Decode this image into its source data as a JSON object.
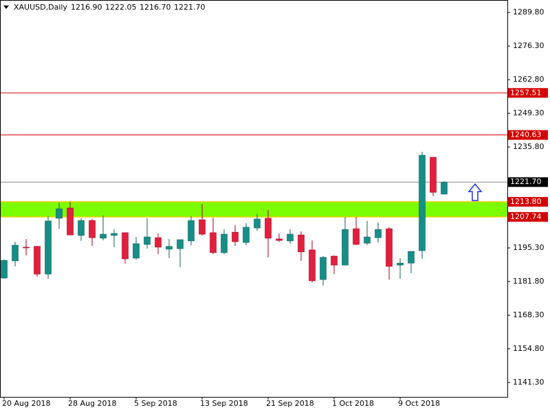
{
  "chart_data": {
    "type": "candlestick",
    "title": "XAUUSD,Daily",
    "header_values": [
      "1216.90",
      "1222.05",
      "1216.70",
      "1221.70"
    ],
    "categories": [
      "20 Aug 2018",
      null,
      null,
      null,
      null,
      null,
      "28 Aug 2018",
      null,
      null,
      null,
      null,
      null,
      "5 Sep 2018",
      null,
      null,
      null,
      null,
      null,
      "13 Sep 2018",
      null,
      null,
      null,
      null,
      null,
      "21 Sep 2018",
      null,
      null,
      null,
      null,
      null,
      "1 Oct 2018",
      null,
      null,
      null,
      null,
      null,
      "9 Oct 2018",
      null,
      null,
      null,
      null
    ],
    "open": [
      1183.2,
      1190.1,
      1195.6,
      1195.9,
      1184.8,
      1207.2,
      1211.3,
      1200.3,
      1206.3,
      1199.2,
      1200.3,
      1201.4,
      1191.2,
      1196.7,
      1199.4,
      1194.8,
      1195.0,
      1198.1,
      1206.6,
      1201.4,
      1193.4,
      1201.6,
      1197.5,
      1203.3,
      1207.2,
      1198.9,
      1198.1,
      1200.5,
      1194.5,
      1182.6,
      1192.0,
      1188.4,
      1203.0,
      1197.2,
      1199.4,
      1203.0,
      1188.4,
      1189.2,
      1194.2,
      1231.7,
      1216.9
    ],
    "high": [
      1190.6,
      1197.8,
      1198.9,
      1196.1,
      1208.0,
      1213.5,
      1213.8,
      1207.2,
      1206.9,
      1208.3,
      1202.7,
      1201.4,
      1199.7,
      1207.2,
      1201.1,
      1198.9,
      1198.6,
      1208.0,
      1212.9,
      1207.4,
      1202.7,
      1204.4,
      1205.2,
      1208.8,
      1210.5,
      1201.1,
      1202.7,
      1201.9,
      1198.3,
      1192.0,
      1192.3,
      1207.7,
      1207.7,
      1206.1,
      1205.5,
      1203.6,
      1191.2,
      1193.9,
      1233.9,
      1231.7,
      1222.05
    ],
    "low": [
      1182.9,
      1187.9,
      1192.3,
      1183.7,
      1182.9,
      1203.0,
      1200.5,
      1198.1,
      1196.1,
      1198.3,
      1195.6,
      1189.0,
      1190.6,
      1195.0,
      1192.8,
      1191.2,
      1187.6,
      1196.4,
      1200.3,
      1192.8,
      1192.8,
      1196.1,
      1196.4,
      1202.2,
      1191.5,
      1197.8,
      1197.0,
      1190.1,
      1181.5,
      1180.2,
      1184.8,
      1188.4,
      1196.4,
      1196.4,
      1197.5,
      1182.6,
      1182.9,
      1185.1,
      1190.9,
      1216.0,
      1216.7
    ],
    "close": [
      1190.3,
      1196.4,
      1195.3,
      1184.8,
      1206.1,
      1211.0,
      1200.5,
      1206.3,
      1199.4,
      1200.8,
      1201.1,
      1190.9,
      1197.0,
      1199.7,
      1195.6,
      1195.9,
      1198.6,
      1206.3,
      1200.8,
      1193.4,
      1200.8,
      1197.8,
      1203.6,
      1206.9,
      1199.2,
      1198.3,
      1200.8,
      1193.7,
      1182.1,
      1191.5,
      1188.4,
      1202.7,
      1196.7,
      1199.7,
      1202.7,
      1187.9,
      1189.2,
      1193.9,
      1232.5,
      1217.6,
      1221.7
    ],
    "up_color": "#168f88",
    "down_color": "#e2203e",
    "ylim": [
      1135.5,
      1294.8
    ],
    "yticks": [
      {
        "value": 1141.3,
        "label": "1141.30"
      },
      {
        "value": 1154.8,
        "label": "1154.80"
      },
      {
        "value": 1168.3,
        "label": "1168.30"
      },
      {
        "value": 1181.8,
        "label": "1181.80"
      },
      {
        "value": 1195.3,
        "label": "1195.30"
      },
      {
        "value": 1235.8,
        "label": "1235.80"
      },
      {
        "value": 1249.3,
        "label": "1249.30"
      },
      {
        "value": 1262.8,
        "label": "1262.80"
      },
      {
        "value": 1276.3,
        "label": "1276.30"
      },
      {
        "value": 1289.8,
        "label": "1289.80"
      }
    ],
    "levels": [
      {
        "value": 1257.51,
        "label": "1257.51",
        "color": "#d40000"
      },
      {
        "value": 1240.63,
        "label": "1240.63",
        "color": "#d40000"
      },
      {
        "value": 1221.7,
        "label": "1221.70",
        "color": "#888888"
      }
    ],
    "zone": {
      "low": {
        "value": 1207.74,
        "label": "1207.74"
      },
      "high": {
        "value": 1213.8,
        "label": "1213.80"
      },
      "color": "#7cfc00",
      "label_color": "#d40000"
    }
  }
}
